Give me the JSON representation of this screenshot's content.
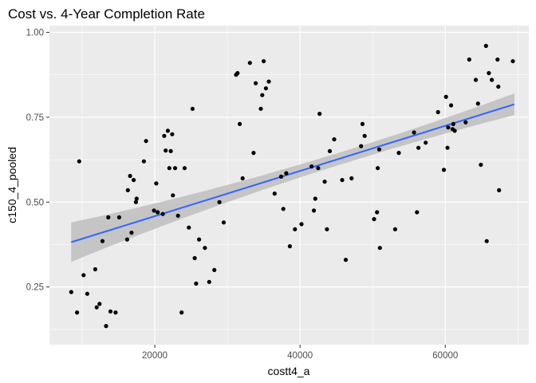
{
  "chart_data": {
    "type": "scatter",
    "title": "Cost vs. 4-Year Completion Rate",
    "xlabel": "costt4_a",
    "ylabel": "c150_4_pooled",
    "xlim": [
      5500,
      71500
    ],
    "ylim": [
      0.08,
      1.02
    ],
    "x_ticks": [
      20000,
      40000,
      60000
    ],
    "x_tick_labels": [
      "20000",
      "40000",
      "60000"
    ],
    "y_ticks": [
      0.25,
      0.5,
      0.75,
      1.0
    ],
    "y_tick_labels": [
      "0.25",
      "0.50",
      "0.75",
      "1.00"
    ],
    "grid": true,
    "smooth": {
      "method": "linear fit with confidence band",
      "color": "#3366ff",
      "band_color": "#bebebe",
      "x": [
        8500,
        69500
      ],
      "y": [
        0.382,
        0.788
      ],
      "band_lower": [
        0.325,
        0.757
      ],
      "band_upper": [
        0.44,
        0.82
      ]
    },
    "points": {
      "x": [
        8500,
        9300,
        9600,
        10200,
        10700,
        11800,
        12000,
        12400,
        12800,
        13300,
        13600,
        13900,
        14600,
        15100,
        16200,
        16300,
        16600,
        16800,
        17100,
        17400,
        17500,
        18500,
        18800,
        19900,
        20200,
        20400,
        21100,
        21300,
        21500,
        21800,
        22000,
        22200,
        22400,
        22500,
        22800,
        23200,
        23700,
        24100,
        24700,
        25200,
        25500,
        25700,
        26100,
        26900,
        27500,
        28200,
        28900,
        29500,
        31200,
        31400,
        31700,
        32100,
        33100,
        33600,
        33900,
        34600,
        34800,
        35000,
        35300,
        35700,
        36500,
        37400,
        37700,
        38100,
        38600,
        39300,
        40200,
        41600,
        41900,
        42100,
        42500,
        42700,
        43400,
        43700,
        44100,
        44700,
        45800,
        46300,
        47100,
        48400,
        48600,
        48900,
        50200,
        50600,
        50700,
        50900,
        51000,
        53100,
        53600,
        55700,
        56100,
        56300,
        57300,
        59000,
        59800,
        60100,
        60300,
        60400,
        60800,
        61000,
        61100,
        61300,
        62800,
        63300,
        64200,
        64500,
        64900,
        65600,
        65700,
        66000,
        66400,
        67200,
        67300,
        67400,
        69300
      ],
      "y": [
        0.235,
        0.175,
        0.62,
        0.285,
        0.23,
        0.302,
        0.19,
        0.2,
        0.385,
        0.135,
        0.455,
        0.178,
        0.175,
        0.455,
        0.39,
        0.535,
        0.577,
        0.41,
        0.565,
        0.5,
        0.51,
        0.62,
        0.68,
        0.475,
        0.555,
        0.47,
        0.465,
        0.695,
        0.652,
        0.71,
        0.6,
        0.65,
        0.7,
        0.52,
        0.6,
        0.46,
        0.175,
        0.6,
        0.425,
        0.775,
        0.335,
        0.26,
        0.39,
        0.365,
        0.265,
        0.3,
        0.5,
        0.44,
        0.875,
        0.88,
        0.73,
        0.57,
        0.91,
        0.645,
        0.85,
        0.775,
        0.815,
        0.915,
        0.835,
        0.855,
        0.525,
        0.575,
        0.48,
        0.585,
        0.37,
        0.42,
        0.435,
        0.605,
        0.475,
        0.51,
        0.6,
        0.76,
        0.56,
        0.42,
        0.65,
        0.685,
        0.565,
        0.33,
        0.57,
        0.665,
        0.73,
        0.695,
        0.45,
        0.47,
        0.6,
        0.655,
        0.365,
        0.42,
        0.645,
        0.705,
        0.47,
        0.66,
        0.675,
        0.765,
        0.595,
        0.81,
        0.66,
        0.72,
        0.785,
        0.715,
        0.73,
        0.71,
        0.735,
        0.92,
        0.86,
        0.79,
        0.61,
        0.96,
        0.385,
        0.88,
        0.86,
        0.92,
        0.84,
        0.535,
        0.915
      ]
    },
    "colors": {
      "panel": "#ebebeb",
      "grid_major": "#ffffff",
      "point": "#000000",
      "tick": "#333333"
    }
  }
}
